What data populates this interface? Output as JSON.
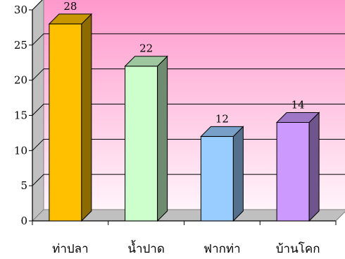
{
  "chart_data": {
    "type": "bar",
    "style": "3d",
    "categories": [
      "ท่าปลา",
      "น้ำปาด",
      "ฟากท่า",
      "บ้านโคก"
    ],
    "values": [
      28,
      22,
      12,
      14
    ],
    "data_labels": [
      "28",
      "22",
      "12",
      "14"
    ],
    "bar_colors": [
      "#ffc000",
      "#ccffcc",
      "#99ccff",
      "#cc99ff"
    ],
    "title": "",
    "xlabel": "",
    "ylabel": "",
    "ylim": [
      0,
      30
    ],
    "yticks": [
      "0",
      "5",
      "10",
      "15",
      "20",
      "25",
      "30"
    ],
    "grid": true,
    "legend": "none",
    "background": {
      "top": "#ff99cc",
      "bottom": "#fff4fa"
    }
  }
}
